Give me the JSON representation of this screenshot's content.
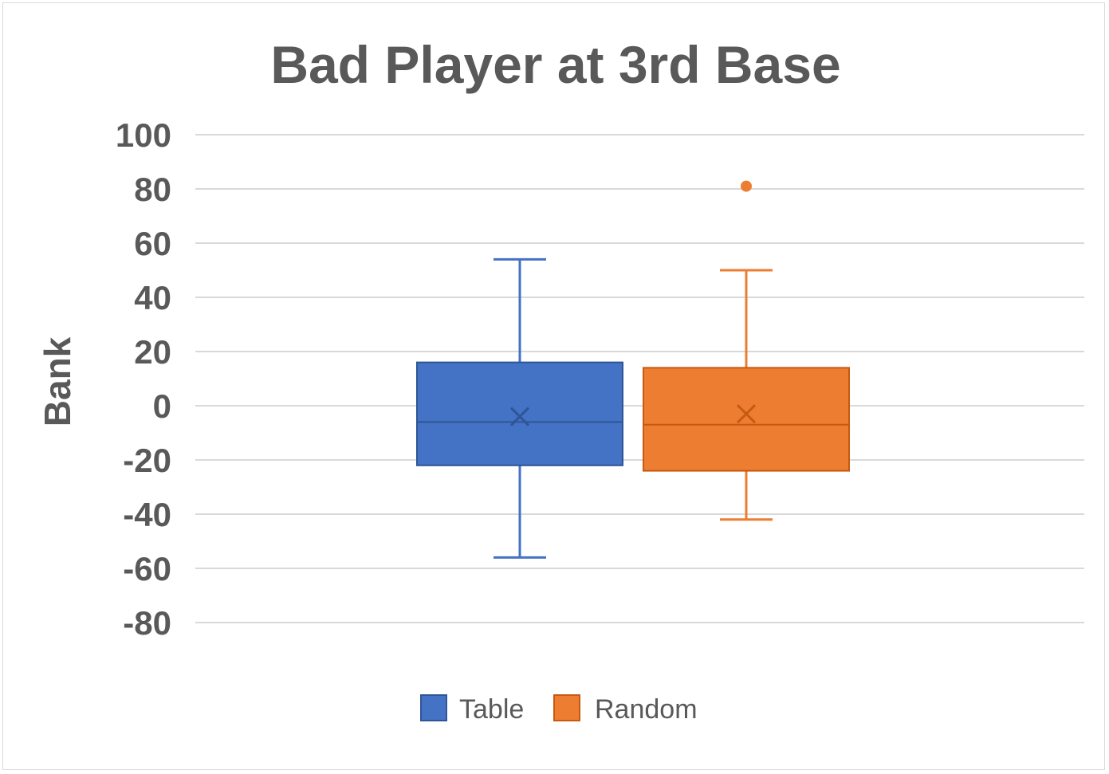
{
  "chart_data": {
    "type": "boxplot",
    "title": "Bad Player at 3rd Base",
    "ylabel": "Bank",
    "xlabel": "",
    "ylim": [
      -80,
      100
    ],
    "ytick_step": 20,
    "yticks": [
      "100",
      "80",
      "60",
      "40",
      "20",
      "0",
      "-20",
      "-40",
      "-60",
      "-80"
    ],
    "grid": true,
    "legend_position": "bottom",
    "series": [
      {
        "name": "Table",
        "color": "#4472c4",
        "min": -56,
        "q1": -22,
        "median": -6,
        "q3": 16,
        "max": 54,
        "mean": -4,
        "outliers": []
      },
      {
        "name": "Random",
        "color": "#ed7d31",
        "min": -42,
        "q1": -24,
        "median": -7,
        "q3": 14,
        "max": 50,
        "mean": -3,
        "outliers": [
          81
        ]
      }
    ]
  }
}
